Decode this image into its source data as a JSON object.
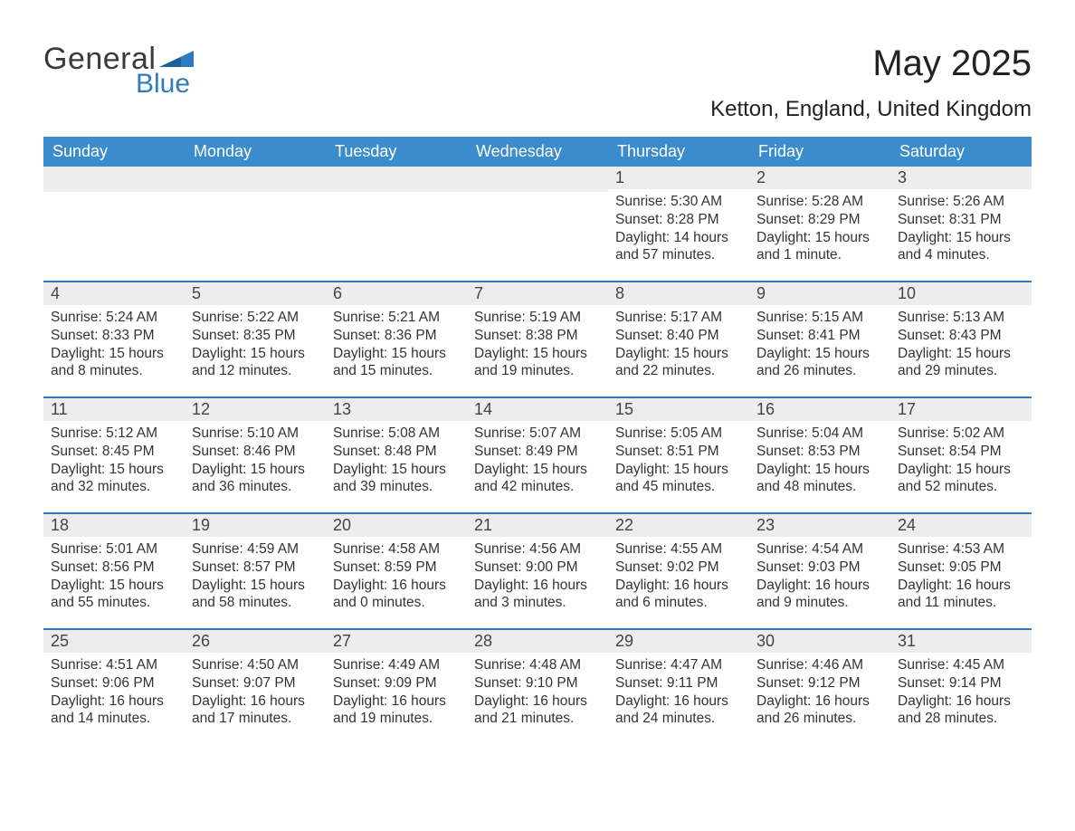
{
  "brand": {
    "word1": "General",
    "word2": "Blue"
  },
  "title": "May 2025",
  "location": "Ketton, England, United Kingdom",
  "colors": {
    "brand_blue": "#2f7bbf",
    "header_blue": "#3b8ccc",
    "row_gray": "#ededed",
    "text_dark": "#222222",
    "background": "#ffffff"
  },
  "calendar": {
    "type": "calendar-table",
    "days_of_week": [
      "Sunday",
      "Monday",
      "Tuesday",
      "Wednesday",
      "Thursday",
      "Friday",
      "Saturday"
    ],
    "weeks": [
      [
        null,
        null,
        null,
        null,
        {
          "n": "1",
          "sunrise": "Sunrise: 5:30 AM",
          "sunset": "Sunset: 8:28 PM",
          "daylight1": "Daylight: 14 hours",
          "daylight2": "and 57 minutes."
        },
        {
          "n": "2",
          "sunrise": "Sunrise: 5:28 AM",
          "sunset": "Sunset: 8:29 PM",
          "daylight1": "Daylight: 15 hours",
          "daylight2": "and 1 minute."
        },
        {
          "n": "3",
          "sunrise": "Sunrise: 5:26 AM",
          "sunset": "Sunset: 8:31 PM",
          "daylight1": "Daylight: 15 hours",
          "daylight2": "and 4 minutes."
        }
      ],
      [
        {
          "n": "4",
          "sunrise": "Sunrise: 5:24 AM",
          "sunset": "Sunset: 8:33 PM",
          "daylight1": "Daylight: 15 hours",
          "daylight2": "and 8 minutes."
        },
        {
          "n": "5",
          "sunrise": "Sunrise: 5:22 AM",
          "sunset": "Sunset: 8:35 PM",
          "daylight1": "Daylight: 15 hours",
          "daylight2": "and 12 minutes."
        },
        {
          "n": "6",
          "sunrise": "Sunrise: 5:21 AM",
          "sunset": "Sunset: 8:36 PM",
          "daylight1": "Daylight: 15 hours",
          "daylight2": "and 15 minutes."
        },
        {
          "n": "7",
          "sunrise": "Sunrise: 5:19 AM",
          "sunset": "Sunset: 8:38 PM",
          "daylight1": "Daylight: 15 hours",
          "daylight2": "and 19 minutes."
        },
        {
          "n": "8",
          "sunrise": "Sunrise: 5:17 AM",
          "sunset": "Sunset: 8:40 PM",
          "daylight1": "Daylight: 15 hours",
          "daylight2": "and 22 minutes."
        },
        {
          "n": "9",
          "sunrise": "Sunrise: 5:15 AM",
          "sunset": "Sunset: 8:41 PM",
          "daylight1": "Daylight: 15 hours",
          "daylight2": "and 26 minutes."
        },
        {
          "n": "10",
          "sunrise": "Sunrise: 5:13 AM",
          "sunset": "Sunset: 8:43 PM",
          "daylight1": "Daylight: 15 hours",
          "daylight2": "and 29 minutes."
        }
      ],
      [
        {
          "n": "11",
          "sunrise": "Sunrise: 5:12 AM",
          "sunset": "Sunset: 8:45 PM",
          "daylight1": "Daylight: 15 hours",
          "daylight2": "and 32 minutes."
        },
        {
          "n": "12",
          "sunrise": "Sunrise: 5:10 AM",
          "sunset": "Sunset: 8:46 PM",
          "daylight1": "Daylight: 15 hours",
          "daylight2": "and 36 minutes."
        },
        {
          "n": "13",
          "sunrise": "Sunrise: 5:08 AM",
          "sunset": "Sunset: 8:48 PM",
          "daylight1": "Daylight: 15 hours",
          "daylight2": "and 39 minutes."
        },
        {
          "n": "14",
          "sunrise": "Sunrise: 5:07 AM",
          "sunset": "Sunset: 8:49 PM",
          "daylight1": "Daylight: 15 hours",
          "daylight2": "and 42 minutes."
        },
        {
          "n": "15",
          "sunrise": "Sunrise: 5:05 AM",
          "sunset": "Sunset: 8:51 PM",
          "daylight1": "Daylight: 15 hours",
          "daylight2": "and 45 minutes."
        },
        {
          "n": "16",
          "sunrise": "Sunrise: 5:04 AM",
          "sunset": "Sunset: 8:53 PM",
          "daylight1": "Daylight: 15 hours",
          "daylight2": "and 48 minutes."
        },
        {
          "n": "17",
          "sunrise": "Sunrise: 5:02 AM",
          "sunset": "Sunset: 8:54 PM",
          "daylight1": "Daylight: 15 hours",
          "daylight2": "and 52 minutes."
        }
      ],
      [
        {
          "n": "18",
          "sunrise": "Sunrise: 5:01 AM",
          "sunset": "Sunset: 8:56 PM",
          "daylight1": "Daylight: 15 hours",
          "daylight2": "and 55 minutes."
        },
        {
          "n": "19",
          "sunrise": "Sunrise: 4:59 AM",
          "sunset": "Sunset: 8:57 PM",
          "daylight1": "Daylight: 15 hours",
          "daylight2": "and 58 minutes."
        },
        {
          "n": "20",
          "sunrise": "Sunrise: 4:58 AM",
          "sunset": "Sunset: 8:59 PM",
          "daylight1": "Daylight: 16 hours",
          "daylight2": "and 0 minutes."
        },
        {
          "n": "21",
          "sunrise": "Sunrise: 4:56 AM",
          "sunset": "Sunset: 9:00 PM",
          "daylight1": "Daylight: 16 hours",
          "daylight2": "and 3 minutes."
        },
        {
          "n": "22",
          "sunrise": "Sunrise: 4:55 AM",
          "sunset": "Sunset: 9:02 PM",
          "daylight1": "Daylight: 16 hours",
          "daylight2": "and 6 minutes."
        },
        {
          "n": "23",
          "sunrise": "Sunrise: 4:54 AM",
          "sunset": "Sunset: 9:03 PM",
          "daylight1": "Daylight: 16 hours",
          "daylight2": "and 9 minutes."
        },
        {
          "n": "24",
          "sunrise": "Sunrise: 4:53 AM",
          "sunset": "Sunset: 9:05 PM",
          "daylight1": "Daylight: 16 hours",
          "daylight2": "and 11 minutes."
        }
      ],
      [
        {
          "n": "25",
          "sunrise": "Sunrise: 4:51 AM",
          "sunset": "Sunset: 9:06 PM",
          "daylight1": "Daylight: 16 hours",
          "daylight2": "and 14 minutes."
        },
        {
          "n": "26",
          "sunrise": "Sunrise: 4:50 AM",
          "sunset": "Sunset: 9:07 PM",
          "daylight1": "Daylight: 16 hours",
          "daylight2": "and 17 minutes."
        },
        {
          "n": "27",
          "sunrise": "Sunrise: 4:49 AM",
          "sunset": "Sunset: 9:09 PM",
          "daylight1": "Daylight: 16 hours",
          "daylight2": "and 19 minutes."
        },
        {
          "n": "28",
          "sunrise": "Sunrise: 4:48 AM",
          "sunset": "Sunset: 9:10 PM",
          "daylight1": "Daylight: 16 hours",
          "daylight2": "and 21 minutes."
        },
        {
          "n": "29",
          "sunrise": "Sunrise: 4:47 AM",
          "sunset": "Sunset: 9:11 PM",
          "daylight1": "Daylight: 16 hours",
          "daylight2": "and 24 minutes."
        },
        {
          "n": "30",
          "sunrise": "Sunrise: 4:46 AM",
          "sunset": "Sunset: 9:12 PM",
          "daylight1": "Daylight: 16 hours",
          "daylight2": "and 26 minutes."
        },
        {
          "n": "31",
          "sunrise": "Sunrise: 4:45 AM",
          "sunset": "Sunset: 9:14 PM",
          "daylight1": "Daylight: 16 hours",
          "daylight2": "and 28 minutes."
        }
      ]
    ]
  }
}
